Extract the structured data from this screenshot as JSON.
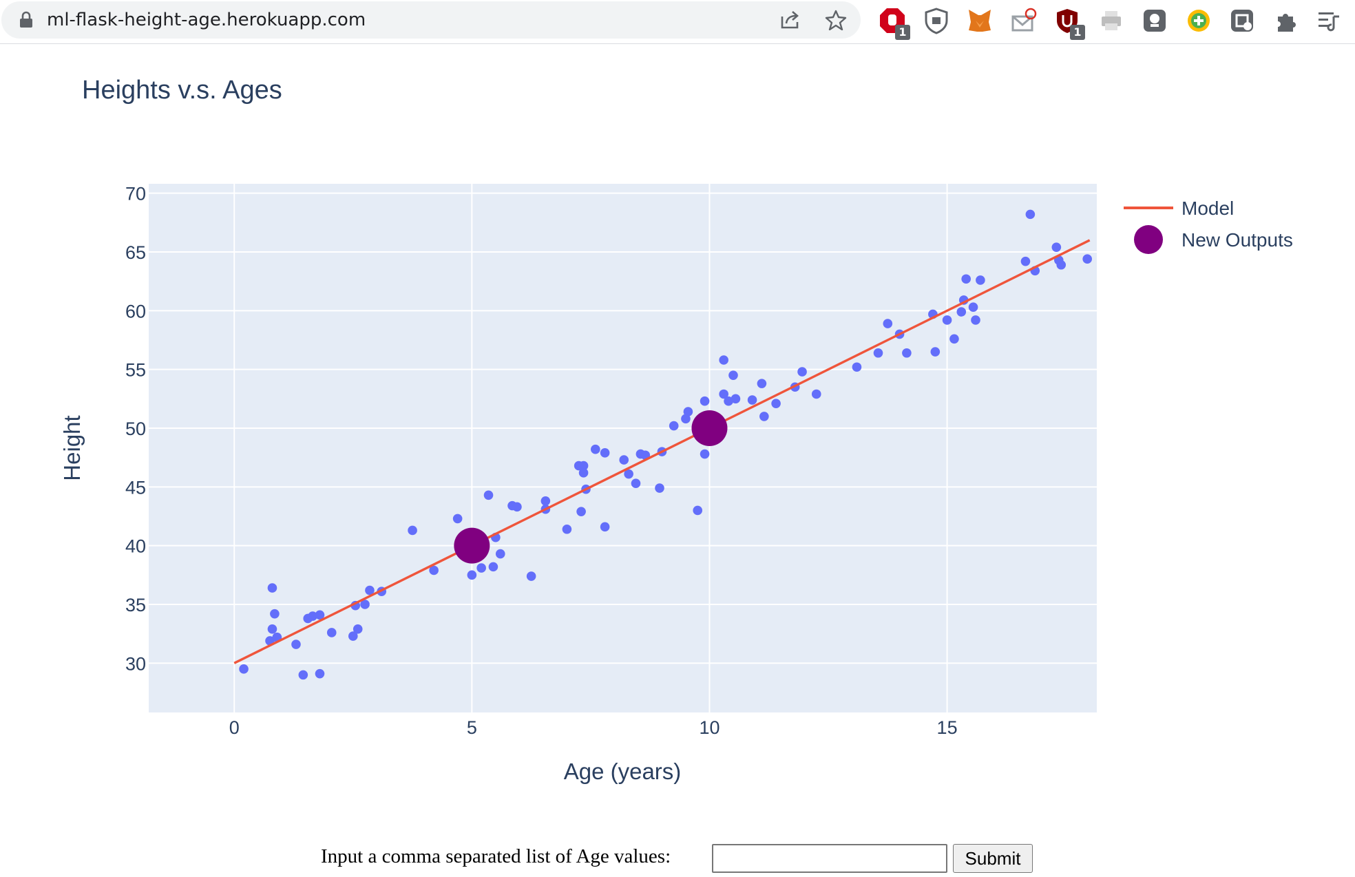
{
  "browser": {
    "url": "ml-flask-height-age.herokuapp.com",
    "extensions": [
      {
        "icon": "adblock-icon",
        "badge": "1",
        "color": "#d0021b"
      },
      {
        "icon": "shield-icon",
        "badge": "",
        "color": "#5f6368"
      },
      {
        "icon": "metamask-fox-icon",
        "badge": "",
        "color": "#e2761b"
      },
      {
        "icon": "mail-tracker-icon",
        "badge": "",
        "color": "#9aa0a6"
      },
      {
        "icon": "ublock-origin-icon",
        "badge": "1",
        "color": "#800000"
      },
      {
        "icon": "printer-icon",
        "badge": "",
        "color": "#bdbdbd"
      },
      {
        "icon": "speech-bubble-icon",
        "badge": "",
        "color": "#5f6368"
      },
      {
        "icon": "plus-circle-icon",
        "badge": "",
        "color": "#4caf50"
      },
      {
        "icon": "screen-capture-icon",
        "badge": "",
        "color": "#5f6368"
      },
      {
        "icon": "puzzle-icon",
        "badge": "",
        "color": "#5f6368"
      },
      {
        "icon": "reading-list-icon",
        "badge": "",
        "color": "#5f6368"
      }
    ]
  },
  "chart_data": {
    "type": "scatter",
    "title": "Heights v.s. Ages",
    "xlabel": "Age (years)",
    "ylabel": "Height",
    "xlim": [
      -1.8,
      18.15
    ],
    "ylim": [
      25.8,
      70.8
    ],
    "x_ticks": [
      0,
      5,
      10,
      15
    ],
    "y_ticks": [
      30,
      35,
      40,
      45,
      50,
      55,
      60,
      65,
      70
    ],
    "grid": true,
    "legend_position": "top-right",
    "colors": {
      "plot_bg": "#e5ecf6",
      "data_points": "#636efa",
      "model_line": "#ef553b",
      "new_outputs": "#800080"
    },
    "series": [
      {
        "type": "scatter",
        "x": [
          0.2,
          0.75,
          0.8,
          0.8,
          0.85,
          0.9,
          0.9,
          1.3,
          1.45,
          1.55,
          1.65,
          1.8,
          1.8,
          2.05,
          2.5,
          2.55,
          2.6,
          2.75,
          2.85,
          3.1,
          3.75,
          4.2,
          4.7,
          5.0,
          5.2,
          5.35,
          5.45,
          5.5,
          5.6,
          5.85,
          5.95,
          6.25,
          6.55,
          6.55,
          7.0,
          7.25,
          7.3,
          7.35,
          7.35,
          7.4,
          7.6,
          7.8,
          7.8,
          8.2,
          8.3,
          8.45,
          8.55,
          8.65,
          8.95,
          9.0,
          9.25,
          9.5,
          9.55,
          9.75,
          9.9,
          9.9,
          10.3,
          10.3,
          10.4,
          10.5,
          10.55,
          10.9,
          11.1,
          11.15,
          11.4,
          11.8,
          11.95,
          12.25,
          13.1,
          13.55,
          13.75,
          14.0,
          14.15,
          14.7,
          14.75,
          15.0,
          15.15,
          15.3,
          15.35,
          15.4,
          15.55,
          15.6,
          15.7,
          16.65,
          16.75,
          16.85,
          17.3,
          17.35,
          17.4,
          17.95
        ],
        "y": [
          29.5,
          31.9,
          32.9,
          36.4,
          34.2,
          32.2,
          32.2,
          31.6,
          29.0,
          33.8,
          34.0,
          34.1,
          29.1,
          32.6,
          32.3,
          34.9,
          32.9,
          35.0,
          36.2,
          36.1,
          41.3,
          37.9,
          42.3,
          37.5,
          38.1,
          44.3,
          38.2,
          40.7,
          39.3,
          43.4,
          43.3,
          37.4,
          43.8,
          43.1,
          41.4,
          46.8,
          42.9,
          46.8,
          46.2,
          44.8,
          48.2,
          47.9,
          41.6,
          47.3,
          46.1,
          45.3,
          47.8,
          47.7,
          44.9,
          48.0,
          50.2,
          50.8,
          51.4,
          43.0,
          52.3,
          47.8,
          55.8,
          52.9,
          52.3,
          54.5,
          52.5,
          52.4,
          53.8,
          51.0,
          52.1,
          53.5,
          54.8,
          52.9,
          55.2,
          56.4,
          58.9,
          58.0,
          56.4,
          59.7,
          56.5,
          59.2,
          57.6,
          59.9,
          60.9,
          62.7,
          60.3,
          59.2,
          62.6,
          64.2,
          68.2,
          63.4,
          65.4,
          64.3,
          63.9,
          64.4
        ]
      },
      {
        "name": "Model",
        "type": "line",
        "x": [
          0,
          18
        ],
        "y": [
          30,
          66
        ]
      },
      {
        "name": "New Outputs",
        "type": "scatter",
        "x": [
          5,
          10
        ],
        "y": [
          40,
          50
        ]
      }
    ]
  },
  "form": {
    "label": "Input a comma separated list of Age values:",
    "input_value": "",
    "submit_label": "Submit"
  }
}
